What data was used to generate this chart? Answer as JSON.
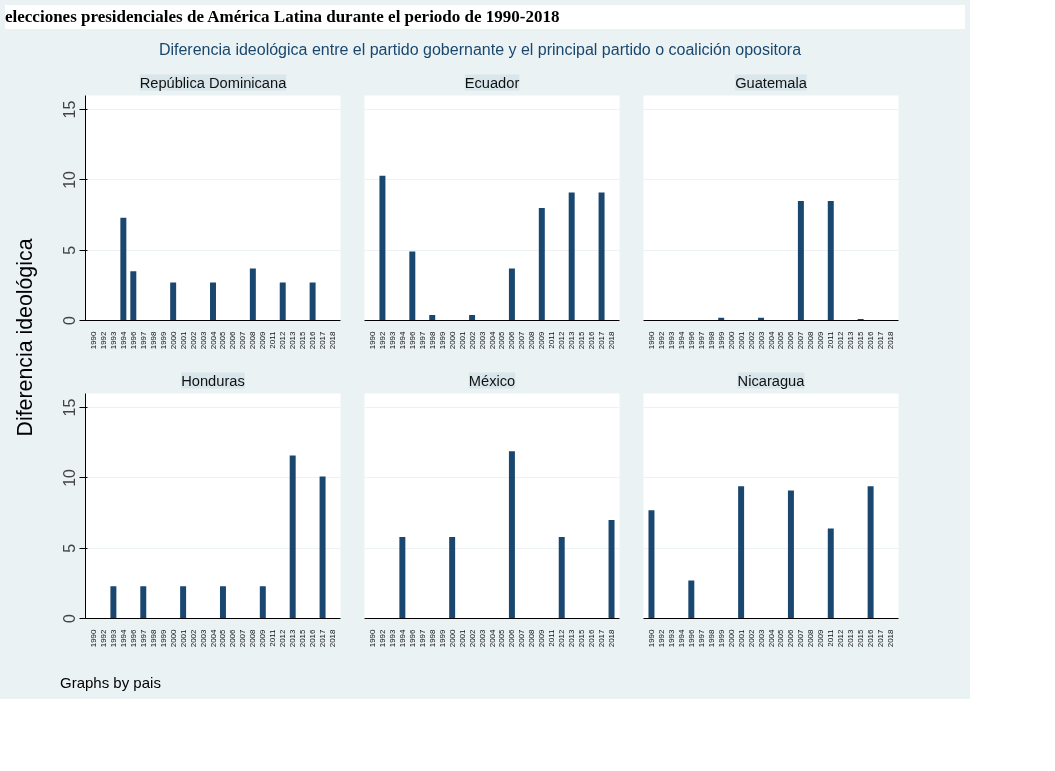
{
  "chart_data": [
    {
      "type": "bar",
      "title": "República Dominicana",
      "ylabel": "Diferencia ideológica",
      "annotations": [
        "elecciones presidenciales de América Latina durante el periodo de 1990-2018",
        "Diferencia ideológica entre el partido gobernante y el principal partido o coalición opositora",
        "Graphs by pais"
      ],
      "categories": [
        "1990",
        "1992",
        "1993",
        "1994",
        "1996",
        "1997",
        "1998",
        "1999",
        "2000",
        "2001",
        "2002",
        "2003",
        "2004",
        "2005",
        "2006",
        "2007",
        "2008",
        "2009",
        "2011",
        "2012",
        "2013",
        "2015",
        "2016",
        "2017",
        "2018"
      ],
      "values": [
        null,
        null,
        null,
        7.3,
        3.5,
        null,
        null,
        null,
        2.7,
        null,
        null,
        null,
        2.7,
        null,
        null,
        null,
        3.7,
        null,
        null,
        2.7,
        null,
        null,
        2.7,
        null,
        null
      ],
      "color": "#1a476f",
      "ylim": [
        0,
        16
      ],
      "yticks": [
        0,
        5,
        10,
        15
      ],
      "grid": "y"
    },
    {
      "type": "bar",
      "title": "Ecuador",
      "categories": [
        "1990",
        "1992",
        "1993",
        "1994",
        "1996",
        "1997",
        "1998",
        "1999",
        "2000",
        "2001",
        "2002",
        "2003",
        "2004",
        "2005",
        "2006",
        "2007",
        "2008",
        "2009",
        "2011",
        "2012",
        "2013",
        "2015",
        "2016",
        "2017",
        "2018"
      ],
      "values": [
        null,
        10.3,
        null,
        null,
        4.9,
        null,
        0.4,
        null,
        null,
        null,
        0.4,
        null,
        null,
        null,
        3.7,
        null,
        null,
        8.0,
        null,
        null,
        9.1,
        null,
        null,
        9.1,
        null
      ],
      "color": "#1a476f",
      "ylim": [
        0,
        16
      ],
      "yticks": [
        0,
        5,
        10,
        15
      ],
      "grid": "y",
      "tick_labels": "x"
    },
    {
      "type": "bar",
      "title": "Guatemala",
      "categories": [
        "1990",
        "1992",
        "1993",
        "1994",
        "1996",
        "1997",
        "1998",
        "1999",
        "2000",
        "2001",
        "2002",
        "2003",
        "2004",
        "2005",
        "2006",
        "2007",
        "2008",
        "2009",
        "2011",
        "2012",
        "2013",
        "2015",
        "2016",
        "2017",
        "2018"
      ],
      "values": [
        null,
        null,
        null,
        null,
        null,
        null,
        null,
        0.2,
        null,
        null,
        null,
        0.2,
        null,
        null,
        null,
        8.5,
        null,
        null,
        8.5,
        null,
        null,
        0.1,
        null,
        null,
        null
      ],
      "color": "#1a476f",
      "ylim": [
        0,
        16
      ],
      "yticks": [
        0,
        5,
        10,
        15
      ],
      "grid": "y",
      "tick_labels": "x"
    },
    {
      "type": "bar",
      "title": "Honduras",
      "categories": [
        "1990",
        "1992",
        "1993",
        "1994",
        "1996",
        "1997",
        "1998",
        "1999",
        "2000",
        "2001",
        "2002",
        "2003",
        "2004",
        "2005",
        "2006",
        "2007",
        "2008",
        "2009",
        "2011",
        "2012",
        "2013",
        "2015",
        "2016",
        "2017",
        "2018"
      ],
      "values": [
        null,
        null,
        2.3,
        null,
        null,
        2.3,
        null,
        null,
        null,
        2.3,
        null,
        null,
        null,
        2.3,
        null,
        null,
        null,
        2.3,
        null,
        null,
        11.6,
        null,
        null,
        10.1,
        null
      ],
      "color": "#1a476f",
      "ylim": [
        0,
        16
      ],
      "yticks": [
        0,
        5,
        10,
        15
      ],
      "grid": "y"
    },
    {
      "type": "bar",
      "title": "México",
      "categories": [
        "1990",
        "1992",
        "1993",
        "1994",
        "1996",
        "1997",
        "1998",
        "1999",
        "2000",
        "2001",
        "2002",
        "2003",
        "2004",
        "2005",
        "2006",
        "2007",
        "2008",
        "2009",
        "2011",
        "2012",
        "2013",
        "2015",
        "2016",
        "2017",
        "2018"
      ],
      "values": [
        null,
        null,
        null,
        5.8,
        null,
        null,
        null,
        null,
        5.8,
        null,
        null,
        null,
        null,
        null,
        11.9,
        null,
        null,
        null,
        null,
        5.8,
        null,
        null,
        null,
        null,
        7.0
      ],
      "color": "#1a476f",
      "ylim": [
        0,
        16
      ],
      "yticks": [
        0,
        5,
        10,
        15
      ],
      "grid": "y",
      "tick_labels": "x"
    },
    {
      "type": "bar",
      "title": "Nicaragua",
      "categories": [
        "1990",
        "1992",
        "1993",
        "1994",
        "1996",
        "1997",
        "1998",
        "1999",
        "2000",
        "2001",
        "2002",
        "2003",
        "2004",
        "2005",
        "2006",
        "2007",
        "2008",
        "2009",
        "2011",
        "2012",
        "2013",
        "2015",
        "2016",
        "2017",
        "2018"
      ],
      "values": [
        7.7,
        null,
        null,
        null,
        2.7,
        null,
        null,
        null,
        null,
        9.4,
        null,
        null,
        null,
        null,
        9.1,
        null,
        null,
        null,
        6.4,
        null,
        null,
        null,
        9.4,
        null,
        null
      ],
      "color": "#1a476f",
      "ylim": [
        0,
        16
      ],
      "yticks": [
        0,
        5,
        10,
        15
      ],
      "grid": "y",
      "tick_labels": "x"
    }
  ]
}
